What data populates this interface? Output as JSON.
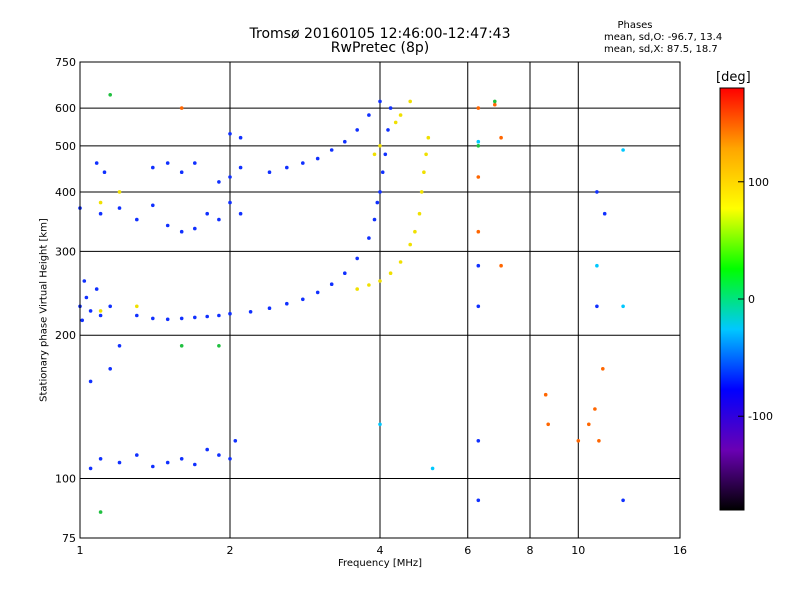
{
  "header": {
    "title": "Tromsø 20160105 12:46:00-12:47:43",
    "subtitle": "RwPretec (8p)",
    "phase_heading": "Phases",
    "phase_o": "mean, sd,O: -96.7, 13.4",
    "phase_x": "mean, sd,X:  87.5, 18.7"
  },
  "colorbar": {
    "title": "[deg]",
    "ticks": [
      "100",
      "0",
      "-100"
    ],
    "range": [
      -180,
      180
    ],
    "colors": [
      "#000000",
      "#6a00b4",
      "#0000ff",
      "#00c8ff",
      "#00ff00",
      "#ffff00",
      "#ffa500",
      "#ff0000"
    ]
  },
  "chart_data": {
    "type": "scatter",
    "xlabel": "Frequency [MHz]",
    "ylabel": "Stationary phase Virtual Height [km]",
    "xscale": "log",
    "yscale": "log",
    "xlim": [
      1,
      16
    ],
    "ylim": [
      75,
      750
    ],
    "xticks": [
      "1",
      "2",
      "4",
      "6",
      "8",
      "10",
      "16"
    ],
    "xtick_values": [
      1,
      2,
      4,
      6,
      8,
      10,
      16
    ],
    "yticks": [
      "75",
      "100",
      "200",
      "300",
      "400",
      "500",
      "600",
      "750"
    ],
    "ytick_values": [
      75,
      100,
      200,
      300,
      400,
      500,
      600,
      750
    ],
    "grid": true,
    "series": [
      {
        "mode": "O",
        "color": "#1030ff",
        "points": [
          [
            1.0,
            230
          ],
          [
            1.01,
            215
          ],
          [
            1.02,
            260
          ],
          [
            1.03,
            240
          ],
          [
            1.05,
            225
          ],
          [
            1.08,
            250
          ],
          [
            1.1,
            220
          ],
          [
            1.15,
            230
          ],
          [
            1.3,
            220
          ],
          [
            1.4,
            217
          ],
          [
            1.5,
            216
          ],
          [
            1.6,
            217
          ],
          [
            1.7,
            218
          ],
          [
            1.8,
            219
          ],
          [
            1.9,
            220
          ],
          [
            2.0,
            222
          ],
          [
            2.2,
            224
          ],
          [
            2.4,
            228
          ],
          [
            2.6,
            233
          ],
          [
            2.8,
            238
          ],
          [
            3.0,
            246
          ],
          [
            3.2,
            256
          ],
          [
            3.4,
            270
          ],
          [
            3.6,
            290
          ],
          [
            3.8,
            320
          ],
          [
            3.9,
            350
          ],
          [
            3.95,
            380
          ],
          [
            4.0,
            400
          ],
          [
            4.05,
            440
          ],
          [
            4.1,
            480
          ],
          [
            4.15,
            540
          ],
          [
            4.2,
            600
          ],
          [
            2.4,
            440
          ],
          [
            2.6,
            450
          ],
          [
            2.8,
            460
          ],
          [
            3.0,
            470
          ],
          [
            3.2,
            490
          ],
          [
            3.4,
            510
          ],
          [
            3.6,
            540
          ],
          [
            3.8,
            580
          ],
          [
            4.0,
            620
          ],
          [
            1.0,
            370
          ],
          [
            1.1,
            360
          ],
          [
            1.2,
            370
          ],
          [
            1.3,
            350
          ],
          [
            1.4,
            375
          ],
          [
            1.5,
            340
          ],
          [
            1.6,
            330
          ],
          [
            1.7,
            335
          ],
          [
            1.8,
            360
          ],
          [
            1.9,
            350
          ],
          [
            2.0,
            380
          ],
          [
            2.1,
            360
          ],
          [
            1.4,
            450
          ],
          [
            1.5,
            460
          ],
          [
            1.6,
            440
          ],
          [
            1.7,
            460
          ],
          [
            1.9,
            420
          ],
          [
            2.0,
            430
          ],
          [
            2.1,
            450
          ],
          [
            1.08,
            460
          ],
          [
            1.12,
            440
          ],
          [
            2.0,
            530
          ],
          [
            2.1,
            520
          ],
          [
            1.05,
            105
          ],
          [
            1.1,
            110
          ],
          [
            1.2,
            108
          ],
          [
            1.3,
            112
          ],
          [
            1.4,
            106
          ],
          [
            1.5,
            108
          ],
          [
            1.6,
            110
          ],
          [
            1.7,
            107
          ],
          [
            1.8,
            115
          ],
          [
            1.9,
            112
          ],
          [
            2.0,
            110
          ],
          [
            2.05,
            120
          ],
          [
            1.15,
            170
          ],
          [
            1.05,
            160
          ],
          [
            1.2,
            190
          ],
          [
            6.3,
            120
          ],
          [
            6.3,
            90
          ],
          [
            6.3,
            230
          ],
          [
            6.3,
            280
          ],
          [
            10.9,
            400
          ],
          [
            11.3,
            360
          ],
          [
            10.9,
            230
          ],
          [
            12.3,
            90
          ]
        ]
      },
      {
        "mode": "X",
        "color": "#f0e000",
        "points": [
          [
            3.6,
            250
          ],
          [
            3.8,
            255
          ],
          [
            4.0,
            260
          ],
          [
            4.2,
            270
          ],
          [
            4.4,
            285
          ],
          [
            4.6,
            310
          ],
          [
            4.7,
            330
          ],
          [
            4.8,
            360
          ],
          [
            4.85,
            400
          ],
          [
            4.9,
            440
          ],
          [
            4.95,
            480
          ],
          [
            5.0,
            520
          ],
          [
            4.3,
            560
          ],
          [
            4.4,
            580
          ],
          [
            4.6,
            620
          ],
          [
            3.9,
            480
          ],
          [
            4.0,
            500
          ],
          [
            1.3,
            230
          ],
          [
            1.1,
            225
          ],
          [
            1.2,
            400
          ],
          [
            1.1,
            380
          ]
        ]
      },
      {
        "mode": "other",
        "color": "#ff6600",
        "points": [
          [
            6.3,
            330
          ],
          [
            7.0,
            280
          ],
          [
            8.6,
            150
          ],
          [
            8.7,
            130
          ],
          [
            10.0,
            120
          ],
          [
            10.5,
            130
          ],
          [
            10.8,
            140
          ],
          [
            11.0,
            120
          ],
          [
            11.2,
            170
          ],
          [
            6.3,
            600
          ],
          [
            6.8,
            610
          ],
          [
            7.0,
            520
          ],
          [
            1.6,
            600
          ],
          [
            6.3,
            430
          ]
        ]
      },
      {
        "mode": "other",
        "color": "#20c040",
        "points": [
          [
            1.1,
            85
          ],
          [
            1.15,
            640
          ],
          [
            1.6,
            190
          ],
          [
            1.9,
            190
          ],
          [
            6.3,
            500
          ],
          [
            6.8,
            620
          ]
        ]
      },
      {
        "mode": "other",
        "color": "#00c8ff",
        "points": [
          [
            6.3,
            510
          ],
          [
            4.0,
            130
          ],
          [
            5.1,
            105
          ],
          [
            10.9,
            280
          ],
          [
            12.3,
            230
          ],
          [
            12.3,
            490
          ]
        ]
      }
    ]
  }
}
